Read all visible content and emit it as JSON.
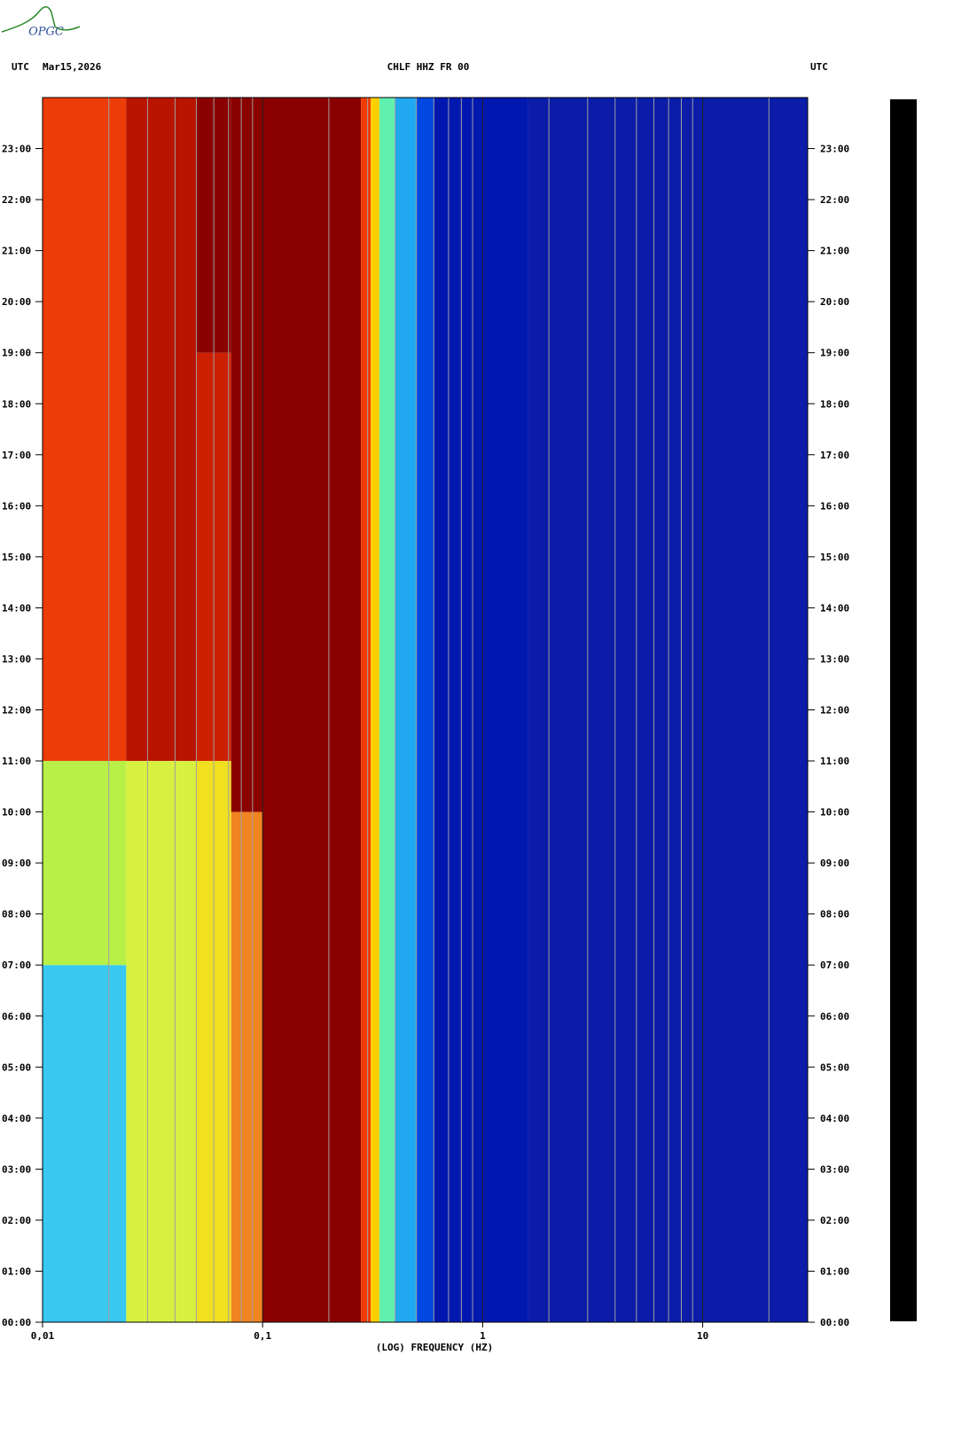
{
  "chart_data": {
    "type": "spectrogram",
    "logo": "OPGC",
    "time_zone": "UTC",
    "date": "Mar15,2026",
    "title": "CHLF HHZ FR 00",
    "x_label": "(LOG) FREQUENCY (HZ)",
    "log_x": true,
    "xlim": [
      0.01,
      30
    ],
    "xticks": [
      {
        "value": 0.01,
        "label": "0,01"
      },
      {
        "value": 0.1,
        "label": "0,1"
      },
      1,
      10
    ],
    "minor_xticks": [
      0.02,
      0.03,
      0.04,
      0.05,
      0.06,
      0.07,
      0.08,
      0.09,
      0.2,
      0.3,
      0.4,
      0.5,
      0.6,
      0.7,
      0.8,
      0.9,
      2,
      3,
      4,
      5,
      6,
      7,
      8,
      9,
      20
    ],
    "ylim": [
      0,
      24
    ],
    "yticks": [
      {
        "value": 0,
        "label": "00:00"
      },
      {
        "value": 1,
        "label": "01:00"
      },
      {
        "value": 2,
        "label": "02:00"
      },
      {
        "value": 3,
        "label": "03:00"
      },
      {
        "value": 4,
        "label": "04:00"
      },
      {
        "value": 5,
        "label": "05:00"
      },
      {
        "value": 6,
        "label": "06:00"
      },
      {
        "value": 7,
        "label": "07:00"
      },
      {
        "value": 8,
        "label": "08:00"
      },
      {
        "value": 9,
        "label": "09:00"
      },
      {
        "value": 10,
        "label": "10:00"
      },
      {
        "value": 11,
        "label": "11:00"
      },
      {
        "value": 12,
        "label": "12:00"
      },
      {
        "value": 13,
        "label": "13:00"
      },
      {
        "value": 14,
        "label": "14:00"
      },
      {
        "value": 15,
        "label": "15:00"
      },
      {
        "value": 16,
        "label": "16:00"
      },
      {
        "value": 17,
        "label": "17:00"
      },
      {
        "value": 18,
        "label": "18:00"
      },
      {
        "value": 19,
        "label": "19:00"
      },
      {
        "value": 20,
        "label": "20:00"
      },
      {
        "value": 21,
        "label": "21:00"
      },
      {
        "value": 22,
        "label": "22:00"
      },
      {
        "value": 23,
        "label": "23:00"
      }
    ],
    "regions": [
      {
        "f": [
          0.01,
          0.024
        ],
        "t": [
          0,
          7
        ],
        "color": "#38c8f0"
      },
      {
        "f": [
          0.01,
          0.024
        ],
        "t": [
          7,
          11
        ],
        "color": "#b8f048"
      },
      {
        "f": [
          0.01,
          0.024
        ],
        "t": [
          11,
          24
        ],
        "color": "#ec3c08"
      },
      {
        "f": [
          0.024,
          0.05
        ],
        "t": [
          0,
          11
        ],
        "color": "#d8f040"
      },
      {
        "f": [
          0.024,
          0.05
        ],
        "t": [
          11,
          24
        ],
        "color": "#b81400"
      },
      {
        "f": [
          0.05,
          0.072
        ],
        "t": [
          0,
          11
        ],
        "color": "#f0e020"
      },
      {
        "f": [
          0.05,
          0.072
        ],
        "t": [
          11,
          19
        ],
        "color": "#cc2000"
      },
      {
        "f": [
          0.05,
          0.072
        ],
        "t": [
          19,
          24
        ],
        "color": "#8b0000"
      },
      {
        "f": [
          0.072,
          0.1
        ],
        "t": [
          0,
          10
        ],
        "color": "#f08420"
      },
      {
        "f": [
          0.072,
          0.1
        ],
        "t": [
          10,
          24
        ],
        "color": "#8b0000"
      },
      {
        "f": [
          0.1,
          0.28
        ],
        "t": [
          0,
          24
        ],
        "color": "#8b0000"
      },
      {
        "f": [
          0.28,
          0.31
        ],
        "t": [
          0,
          24
        ],
        "color": "#f03a00"
      },
      {
        "f": [
          0.31,
          0.34
        ],
        "t": [
          0,
          24
        ],
        "color": "#ffd000"
      },
      {
        "f": [
          0.34,
          0.4
        ],
        "t": [
          0,
          24
        ],
        "color": "#60f0b0"
      },
      {
        "f": [
          0.4,
          0.5
        ],
        "t": [
          0,
          24
        ],
        "color": "#20a8f0"
      },
      {
        "f": [
          0.5,
          0.6
        ],
        "t": [
          0,
          24
        ],
        "color": "#0048e0"
      },
      {
        "f": [
          0.6,
          1.6
        ],
        "t": [
          0,
          24
        ],
        "color": "#0018b0"
      },
      {
        "f": [
          1.6,
          30
        ],
        "t": [
          0,
          24
        ],
        "color": "#0a1ca8"
      }
    ]
  }
}
